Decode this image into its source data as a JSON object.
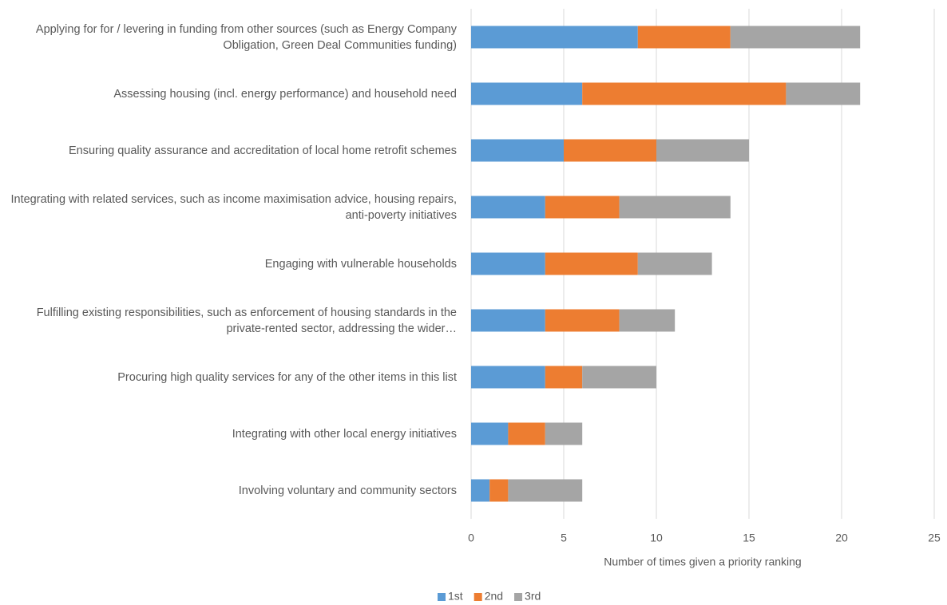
{
  "chart_data": {
    "type": "stacked_bar_horizontal",
    "categories": [
      "Applying for for / levering in funding from other sources (such as Energy Company Obligation, Green Deal Communities funding)",
      "Assessing housing (incl. energy performance) and household need",
      "Ensuring quality assurance and accreditation of local home retrofit schemes",
      "Integrating with related services, such as income maximisation advice, housing repairs, anti-poverty initiatives",
      "Engaging with vulnerable households",
      "Fulfilling existing responsibilities, such as enforcement of housing standards in the private-rented sector, addressing the wider…",
      "Procuring high quality services for any of the other items in this list",
      "Integrating with other local energy initiatives",
      "Involving voluntary and community sectors"
    ],
    "series": [
      {
        "name": "1st",
        "color": "#5b9bd5",
        "values": [
          9,
          6,
          5,
          4,
          4,
          4,
          4,
          2,
          1
        ]
      },
      {
        "name": "2nd",
        "color": "#ed7d31",
        "values": [
          5,
          11,
          5,
          4,
          5,
          4,
          2,
          2,
          1
        ]
      },
      {
        "name": "3rd",
        "color": "#a5a5a5",
        "values": [
          7,
          4,
          5,
          6,
          4,
          3,
          4,
          2,
          4
        ]
      }
    ],
    "x_label": "Number of times given a priority ranking",
    "xlim": [
      0,
      25
    ],
    "xticks": [
      0,
      5,
      10,
      15,
      20,
      25
    ],
    "grid": true,
    "legend": "bottom"
  }
}
